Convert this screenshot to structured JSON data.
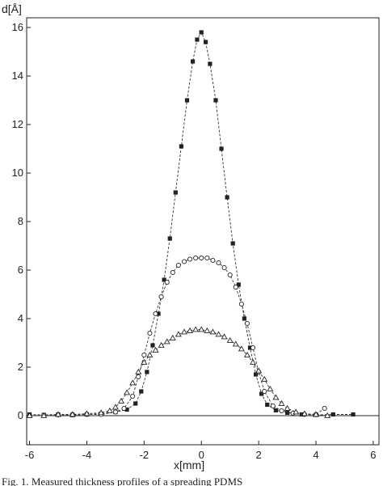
{
  "caption": "Fig. 1. Measured thickness profiles of a spreading PDMS",
  "chart_data": {
    "type": "line",
    "xlabel": "x[mm]",
    "ylabel": "d[Å]",
    "xlim": [
      -6.1,
      6.2
    ],
    "ylim": [
      -1.2,
      16.4
    ],
    "xticks": [
      "-6",
      "-4",
      "-2",
      "0",
      "2",
      "4",
      "6"
    ],
    "yticks": [
      "0",
      "2",
      "4",
      "6",
      "8",
      "10",
      "12",
      "14",
      "16"
    ],
    "grid": false,
    "legend": "none",
    "series": [
      {
        "marker": "square",
        "points": [
          [
            -6.0,
            0.05
          ],
          [
            -5.5,
            0.03
          ],
          [
            -5.0,
            0.05
          ],
          [
            -4.5,
            0.02
          ],
          [
            -4.0,
            0.05
          ],
          [
            -3.5,
            0.08
          ],
          [
            -3.0,
            0.15
          ],
          [
            -2.6,
            0.25
          ],
          [
            -2.3,
            0.5
          ],
          [
            -2.1,
            1.0
          ],
          [
            -1.9,
            1.8
          ],
          [
            -1.7,
            2.9
          ],
          [
            -1.5,
            4.2
          ],
          [
            -1.3,
            5.6
          ],
          [
            -1.1,
            7.3
          ],
          [
            -0.9,
            9.2
          ],
          [
            -0.7,
            11.1
          ],
          [
            -0.5,
            13.0
          ],
          [
            -0.3,
            14.6
          ],
          [
            -0.15,
            15.5
          ],
          [
            0.0,
            15.8
          ],
          [
            0.15,
            15.4
          ],
          [
            0.3,
            14.5
          ],
          [
            0.5,
            13.0
          ],
          [
            0.7,
            11.0
          ],
          [
            0.9,
            9.0
          ],
          [
            1.1,
            7.1
          ],
          [
            1.3,
            5.4
          ],
          [
            1.5,
            4.0
          ],
          [
            1.7,
            2.8
          ],
          [
            1.9,
            1.7
          ],
          [
            2.1,
            0.9
          ],
          [
            2.3,
            0.45
          ],
          [
            2.6,
            0.22
          ],
          [
            3.0,
            0.12
          ],
          [
            3.5,
            0.05
          ],
          [
            4.0,
            0.03
          ],
          [
            4.6,
            0.05
          ],
          [
            5.3,
            0.05
          ]
        ]
      },
      {
        "marker": "circle",
        "points": [
          [
            -6.0,
            0.0
          ],
          [
            -5.5,
            0.02
          ],
          [
            -5.0,
            0.03
          ],
          [
            -4.5,
            0.05
          ],
          [
            -4.0,
            0.05
          ],
          [
            -3.5,
            0.05
          ],
          [
            -3.0,
            0.15
          ],
          [
            -2.7,
            0.3
          ],
          [
            -2.4,
            0.8
          ],
          [
            -2.2,
            1.6
          ],
          [
            -2.0,
            2.5
          ],
          [
            -1.8,
            3.4
          ],
          [
            -1.6,
            4.2
          ],
          [
            -1.4,
            4.9
          ],
          [
            -1.2,
            5.5
          ],
          [
            -1.0,
            5.9
          ],
          [
            -0.8,
            6.2
          ],
          [
            -0.6,
            6.35
          ],
          [
            -0.4,
            6.45
          ],
          [
            -0.2,
            6.5
          ],
          [
            0.0,
            6.5
          ],
          [
            0.2,
            6.5
          ],
          [
            0.4,
            6.4
          ],
          [
            0.6,
            6.3
          ],
          [
            0.8,
            6.1
          ],
          [
            1.0,
            5.8
          ],
          [
            1.2,
            5.3
          ],
          [
            1.4,
            4.6
          ],
          [
            1.6,
            3.8
          ],
          [
            1.8,
            2.8
          ],
          [
            2.0,
            1.8
          ],
          [
            2.2,
            1.0
          ],
          [
            2.5,
            0.4
          ],
          [
            2.8,
            0.2
          ],
          [
            3.2,
            0.1
          ],
          [
            3.6,
            0.05
          ],
          [
            4.0,
            0.05
          ],
          [
            4.3,
            0.3
          ]
        ]
      },
      {
        "marker": "triangle",
        "points": [
          [
            -6.0,
            0.0
          ],
          [
            -5.5,
            0.0
          ],
          [
            -5.0,
            0.05
          ],
          [
            -4.5,
            0.05
          ],
          [
            -4.0,
            0.08
          ],
          [
            -3.5,
            0.12
          ],
          [
            -3.2,
            0.2
          ],
          [
            -3.0,
            0.35
          ],
          [
            -2.8,
            0.6
          ],
          [
            -2.6,
            0.95
          ],
          [
            -2.4,
            1.35
          ],
          [
            -2.2,
            1.8
          ],
          [
            -2.0,
            2.2
          ],
          [
            -1.8,
            2.5
          ],
          [
            -1.6,
            2.7
          ],
          [
            -1.4,
            2.9
          ],
          [
            -1.2,
            3.05
          ],
          [
            -1.0,
            3.2
          ],
          [
            -0.8,
            3.35
          ],
          [
            -0.6,
            3.45
          ],
          [
            -0.4,
            3.5
          ],
          [
            -0.2,
            3.55
          ],
          [
            0.0,
            3.55
          ],
          [
            0.2,
            3.5
          ],
          [
            0.4,
            3.45
          ],
          [
            0.6,
            3.35
          ],
          [
            0.8,
            3.25
          ],
          [
            1.0,
            3.1
          ],
          [
            1.2,
            2.95
          ],
          [
            1.4,
            2.75
          ],
          [
            1.6,
            2.5
          ],
          [
            1.8,
            2.2
          ],
          [
            2.0,
            1.85
          ],
          [
            2.2,
            1.5
          ],
          [
            2.4,
            1.1
          ],
          [
            2.6,
            0.75
          ],
          [
            2.8,
            0.5
          ],
          [
            3.0,
            0.3
          ],
          [
            3.3,
            0.15
          ],
          [
            3.6,
            0.08
          ],
          [
            4.0,
            0.05
          ],
          [
            4.4,
            0.0
          ]
        ]
      }
    ]
  }
}
